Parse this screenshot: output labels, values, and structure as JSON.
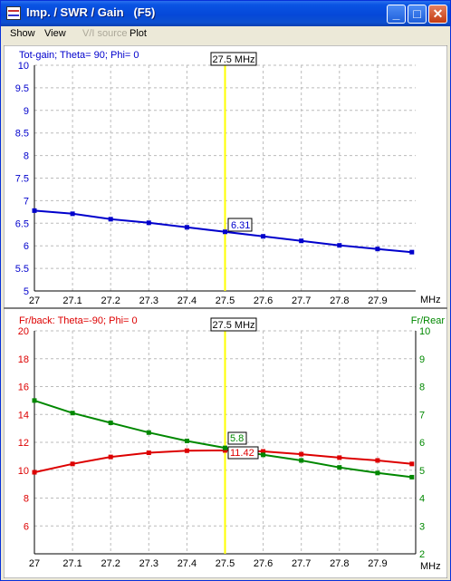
{
  "window": {
    "title": "Imp. / SWR / Gain   (F5)",
    "icon": "window-app-icon",
    "buttons": {
      "minimize": "_",
      "maximize": "□",
      "close": "✕"
    }
  },
  "menu": {
    "items": [
      {
        "label": "Show",
        "enabled": true
      },
      {
        "label": "View",
        "enabled": true
      },
      {
        "label": "V/I source",
        "enabled": false
      },
      {
        "label": "Plot",
        "enabled": true
      }
    ]
  },
  "colors": {
    "gain": "#0000CC",
    "frontback": "#DD0000",
    "frontrear": "#008800",
    "cursor": "#FFFF00",
    "grid": "#BBBBBB"
  },
  "chart_data": [
    {
      "type": "line",
      "title": "Tot-gain; Theta= 90; Phi= 0",
      "xlabel": "MHz",
      "xlim": [
        27,
        28
      ],
      "ylim": [
        5,
        10
      ],
      "x_ticks": [
        "27",
        "27.1",
        "27.2",
        "27.3",
        "27.4",
        "27.5",
        "27.6",
        "27.7",
        "27.8",
        "27.9"
      ],
      "y_ticks": [
        "5",
        "5.5",
        "6",
        "6.5",
        "7",
        "7.5",
        "8",
        "8.5",
        "9",
        "9.5",
        "10"
      ],
      "cursor": {
        "x": 27.5,
        "label": "27.5 MHz"
      },
      "marker_labels": [
        "6.31"
      ],
      "series": [
        {
          "x": [
            27,
            27.1,
            27.2,
            27.3,
            27.4,
            27.5,
            27.6,
            27.7,
            27.8,
            27.9,
            27.99
          ],
          "values": [
            6.78,
            6.71,
            6.59,
            6.51,
            6.41,
            6.31,
            6.21,
            6.11,
            6.01,
            5.93,
            5.86
          ]
        }
      ]
    },
    {
      "type": "line",
      "title": "Fr/back: Theta=-90; Phi= 0",
      "right_axis_label": "Fr/Rear",
      "xlabel": "MHz",
      "xlim": [
        27,
        28
      ],
      "ylim": [
        4,
        20
      ],
      "y2lim": [
        2,
        10
      ],
      "x_ticks": [
        "27",
        "27.1",
        "27.2",
        "27.3",
        "27.4",
        "27.5",
        "27.6",
        "27.7",
        "27.8",
        "27.9"
      ],
      "y_ticks": [
        "6",
        "8",
        "10",
        "12",
        "14",
        "16",
        "18",
        "20"
      ],
      "y2_ticks": [
        "2",
        "3",
        "4",
        "5",
        "6",
        "7",
        "8",
        "9",
        "10"
      ],
      "cursor": {
        "x": 27.5,
        "label": "27.5 MHz"
      },
      "marker_labels": [
        "5.8",
        "11.42"
      ],
      "series": [
        {
          "axis": "left",
          "x": [
            27,
            27.1,
            27.2,
            27.3,
            27.4,
            27.5,
            27.6,
            27.7,
            27.8,
            27.9,
            27.99
          ],
          "values": [
            9.85,
            10.45,
            10.95,
            11.25,
            11.4,
            11.42,
            11.35,
            11.15,
            10.9,
            10.7,
            10.45
          ]
        },
        {
          "axis": "right",
          "x": [
            27,
            27.1,
            27.2,
            27.3,
            27.4,
            27.5,
            27.6,
            27.7,
            27.8,
            27.9,
            27.99
          ],
          "values": [
            7.5,
            7.05,
            6.7,
            6.35,
            6.05,
            5.8,
            5.55,
            5.35,
            5.1,
            4.9,
            4.75
          ]
        }
      ]
    }
  ]
}
